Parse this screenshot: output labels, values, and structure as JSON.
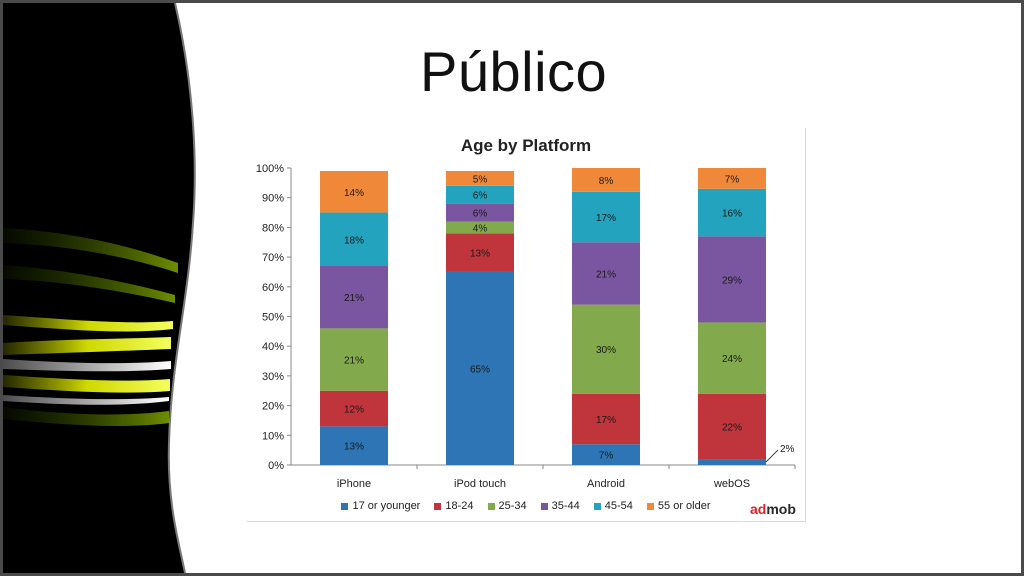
{
  "slide": {
    "title": "Público"
  },
  "brand": {
    "part1": "ad",
    "part2": "mob"
  },
  "colors": {
    "background_left": "#000000",
    "frame": "#4a4a4a",
    "streak_yellow": "#e6f000",
    "streak_green": "#6a8c00"
  },
  "chart_data": {
    "type": "bar",
    "stacked": true,
    "title": "Age by Platform",
    "xlabel": "",
    "ylabel": "",
    "ylim": [
      0,
      100
    ],
    "yticks": [
      "0%",
      "10%",
      "20%",
      "30%",
      "40%",
      "50%",
      "60%",
      "70%",
      "80%",
      "90%",
      "100%"
    ],
    "categories": [
      "iPhone",
      "iPod touch",
      "Android",
      "webOS"
    ],
    "series": [
      {
        "name": "17 or younger",
        "color": "#2e75b6",
        "values": [
          13,
          65,
          7,
          2
        ],
        "labels": [
          "13%",
          "65%",
          "7%",
          "2%"
        ]
      },
      {
        "name": "18-24",
        "color": "#c0343c",
        "values": [
          12,
          13,
          17,
          22
        ],
        "labels": [
          "12%",
          "13%",
          "17%",
          "22%"
        ]
      },
      {
        "name": "25-34",
        "color": "#82a94b",
        "values": [
          21,
          4,
          30,
          24
        ],
        "labels": [
          "21%",
          "4%",
          "30%",
          "24%"
        ]
      },
      {
        "name": "35-44",
        "color": "#7a55a0",
        "values": [
          21,
          6,
          21,
          29
        ],
        "labels": [
          "21%",
          "6%",
          "21%",
          "29%"
        ]
      },
      {
        "name": "45-54",
        "color": "#23a3be",
        "values": [
          18,
          6,
          17,
          16
        ],
        "labels": [
          "18%",
          "6%",
          "17%",
          "16%"
        ]
      },
      {
        "name": "55 or older",
        "color": "#f0883a",
        "values": [
          14,
          5,
          8,
          7
        ],
        "labels": [
          "14%",
          "5%",
          "8%",
          "7%"
        ]
      }
    ],
    "legend_position": "bottom",
    "grid": false
  }
}
